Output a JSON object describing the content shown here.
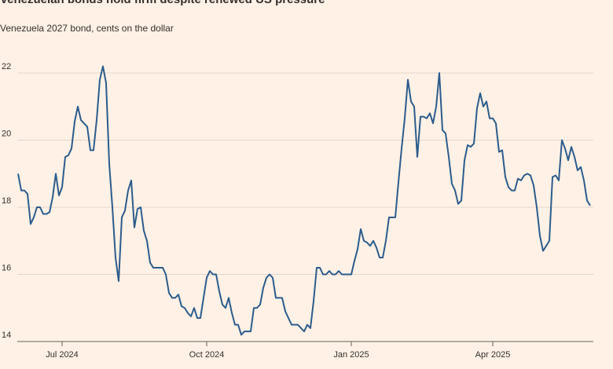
{
  "chart_data": {
    "type": "line",
    "title": "Venezuelan bonds hold firm despite renewed US pressure",
    "subtitle": "Venezuela 2027 bond, cents on the dollar",
    "categories": [
      null,
      null,
      null,
      null,
      null,
      null,
      null,
      null,
      null,
      null,
      null,
      null,
      null,
      null,
      "Jul 2024",
      null,
      null,
      null,
      null,
      null,
      null,
      null,
      null,
      null,
      null,
      null,
      null,
      null,
      null,
      null,
      null,
      null,
      null,
      null,
      null,
      null,
      null,
      null,
      null,
      null,
      null,
      null,
      null,
      null,
      null,
      null,
      null,
      null,
      null,
      null,
      null,
      null,
      null,
      null,
      null,
      null,
      null,
      null,
      null,
      null,
      "Oct 2024",
      null,
      null,
      null,
      null,
      null,
      null,
      null,
      null,
      null,
      null,
      null,
      null,
      null,
      null,
      null,
      null,
      null,
      null,
      null,
      null,
      null,
      null,
      null,
      null,
      null,
      null,
      null,
      null,
      null,
      null,
      null,
      null,
      null,
      null,
      null,
      null,
      null,
      null,
      null,
      null,
      null,
      null,
      null,
      null,
      null,
      "Jan 2025",
      null,
      null,
      null,
      null,
      null,
      null,
      null,
      null,
      null,
      null,
      null,
      null,
      null,
      null,
      null,
      null,
      null,
      null,
      null,
      null,
      null,
      null,
      null,
      null,
      null,
      null,
      null,
      null,
      null,
      null,
      null,
      null,
      null,
      null,
      null,
      null,
      null,
      null,
      null,
      null,
      null,
      null,
      null,
      null,
      "Apr 2025",
      null,
      null,
      null,
      null,
      null,
      null,
      null,
      null,
      null,
      null,
      null,
      null,
      null,
      null,
      null,
      null,
      null,
      null,
      null,
      null,
      null,
      null,
      null,
      null,
      null,
      null,
      null,
      null,
      null,
      null,
      null
    ],
    "series": [
      {
        "name": "Venezuela 2027 bond",
        "color": "#2b5c8c",
        "values": [
          19.0,
          18.5,
          18.5,
          18.4,
          17.5,
          17.7,
          18.0,
          18.0,
          17.8,
          17.8,
          17.85,
          18.3,
          19.0,
          18.35,
          18.6,
          19.5,
          19.55,
          19.75,
          20.55,
          21.0,
          20.6,
          20.5,
          20.4,
          19.7,
          19.7,
          20.6,
          21.8,
          22.2,
          21.7,
          19.3,
          18.0,
          16.5,
          15.8,
          17.7,
          17.9,
          18.5,
          18.8,
          17.4,
          17.95,
          18.0,
          17.3,
          17.0,
          16.35,
          16.2,
          16.2,
          16.2,
          16.2,
          16.0,
          15.45,
          15.3,
          15.3,
          15.4,
          15.05,
          15.0,
          14.85,
          14.75,
          15.0,
          14.7,
          14.7,
          15.3,
          15.9,
          16.1,
          16.0,
          16.0,
          15.5,
          15.1,
          15.0,
          15.3,
          14.85,
          14.5,
          14.5,
          14.2,
          14.3,
          14.3,
          14.3,
          15.0,
          15.0,
          15.1,
          15.6,
          15.9,
          16.0,
          15.9,
          15.3,
          15.3,
          15.3,
          14.9,
          14.7,
          14.5,
          14.5,
          14.5,
          14.4,
          14.3,
          14.5,
          14.4,
          15.2,
          16.2,
          16.2,
          16.0,
          16.0,
          16.1,
          16.0,
          16.0,
          16.1,
          16.0,
          16.0,
          16.0,
          16.0,
          16.4,
          16.75,
          17.35,
          17.0,
          16.95,
          16.85,
          17.0,
          16.8,
          16.5,
          16.5,
          17.0,
          17.7,
          17.7,
          17.7,
          18.75,
          19.75,
          20.65,
          21.8,
          21.15,
          21.0,
          19.5,
          20.7,
          20.7,
          20.65,
          20.8,
          20.5,
          21.0,
          22.0,
          20.3,
          20.2,
          19.5,
          18.7,
          18.5,
          18.1,
          18.2,
          19.4,
          19.85,
          19.8,
          19.9,
          20.95,
          21.4,
          21.0,
          21.15,
          20.65,
          20.65,
          20.5,
          19.65,
          19.7,
          18.9,
          18.6,
          18.5,
          18.5,
          18.85,
          18.8,
          18.95,
          19.0,
          18.95,
          18.65,
          18.0,
          17.15,
          16.7,
          16.85,
          17.0,
          18.9,
          18.95,
          18.8,
          20.0,
          19.75,
          19.4,
          19.8,
          19.5,
          19.1,
          19.2,
          18.8,
          18.2,
          18.05
        ]
      }
    ],
    "ylim": [
      14,
      22.9
    ],
    "yticks": [
      14,
      16,
      18,
      20,
      22
    ],
    "grid": true
  }
}
